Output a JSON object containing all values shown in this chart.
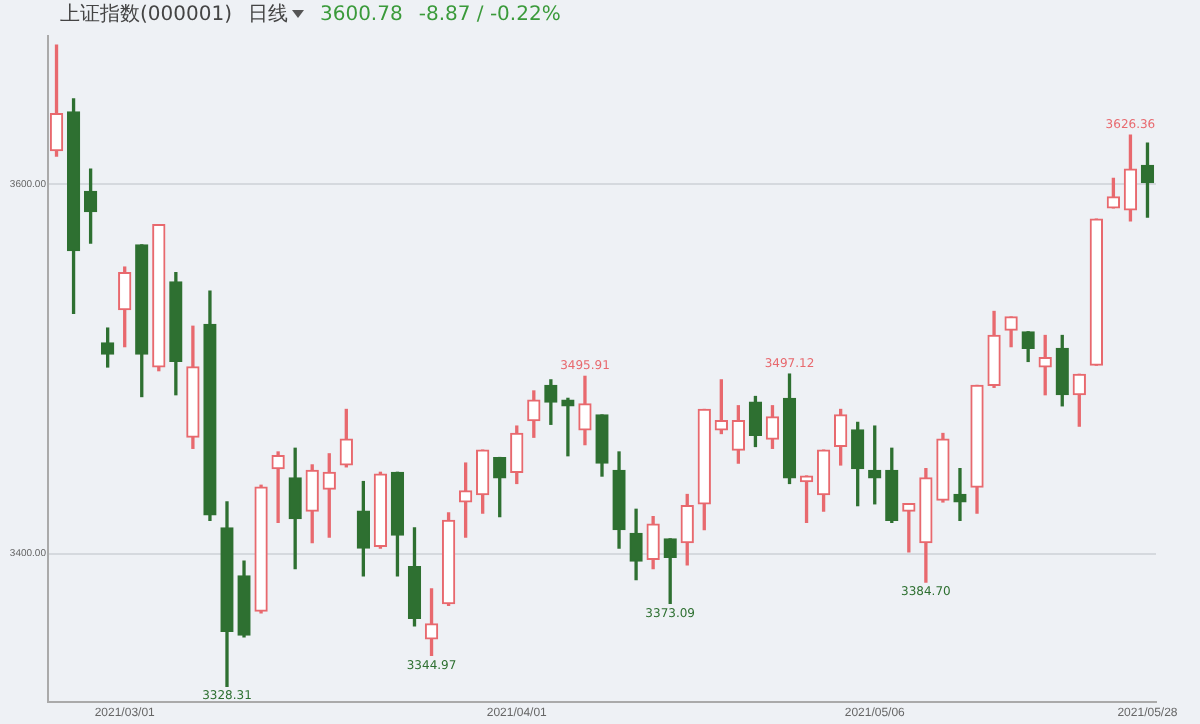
{
  "chart_data": {
    "type": "candlestick",
    "title": "上证指数(000001)",
    "categories": [
      null,
      null,
      null,
      null,
      "2021/03/01",
      null,
      null,
      null,
      null,
      null,
      null,
      null,
      null,
      null,
      null,
      null,
      null,
      null,
      null,
      null,
      null,
      null,
      null,
      null,
      null,
      null,
      null,
      "2021/04/01",
      null,
      null,
      null,
      null,
      null,
      null,
      null,
      null,
      null,
      null,
      null,
      null,
      null,
      null,
      null,
      null,
      null,
      null,
      null,
      null,
      "2021/05/06",
      null,
      null,
      null,
      null,
      null,
      null,
      null,
      null,
      null,
      null,
      null,
      null,
      null,
      null,
      null,
      "2021/05/28"
    ],
    "ohlc": [
      [
        3618,
        3675,
        3615,
        3638
      ],
      [
        3639,
        3646,
        3530,
        3564
      ],
      [
        3596,
        3608,
        3568,
        3585
      ],
      [
        3514,
        3522,
        3501,
        3508
      ],
      [
        3532,
        3555,
        3512,
        3552
      ],
      [
        3567,
        3567,
        3485,
        3508
      ],
      [
        3501,
        3578,
        3499,
        3578
      ],
      [
        3547,
        3552,
        3486,
        3504
      ],
      [
        3463,
        3523,
        3457,
        3501
      ],
      [
        3524,
        3542,
        3418,
        3421
      ],
      [
        3414,
        3428,
        3328.31,
        3358
      ],
      [
        3388,
        3396,
        3355,
        3356
      ],
      [
        3369,
        3437,
        3368,
        3436
      ],
      [
        3446,
        3455,
        3417,
        3453
      ],
      [
        3441,
        3457,
        3392,
        3419
      ],
      [
        3423,
        3448,
        3406,
        3445
      ],
      [
        3435,
        3454,
        3409,
        3444
      ],
      [
        3448,
        3478,
        3447,
        3462
      ],
      [
        3423,
        3439,
        3388,
        3403
      ],
      [
        3404,
        3444,
        3403,
        3443
      ],
      [
        3444,
        3444,
        3388,
        3410
      ],
      [
        3393,
        3414,
        3361,
        3365
      ],
      [
        3354,
        3381,
        3344.97,
        3362
      ],
      [
        3373,
        3422,
        3372,
        3418
      ],
      [
        3428,
        3449,
        3409,
        3434
      ],
      [
        3432,
        3456,
        3422,
        3456
      ],
      [
        3452,
        3452,
        3420,
        3441
      ],
      [
        3444,
        3469,
        3438,
        3465
      ],
      [
        3472,
        3488,
        3463,
        3483
      ],
      [
        3491,
        3494,
        3470,
        3482
      ],
      [
        3483,
        3484,
        3453,
        3480
      ],
      [
        3467,
        3495.91,
        3459,
        3481
      ],
      [
        3475,
        3475,
        3442,
        3449
      ],
      [
        3445,
        3455,
        3403,
        3413
      ],
      [
        3411,
        3424,
        3386,
        3396
      ],
      [
        3397,
        3420,
        3392,
        3416
      ],
      [
        3408,
        3408,
        3373.09,
        3398
      ],
      [
        3406,
        3432,
        3394,
        3426
      ],
      [
        3427,
        3478,
        3413,
        3478
      ],
      [
        3467,
        3494,
        3465,
        3472
      ],
      [
        3456,
        3480,
        3449,
        3472
      ],
      [
        3482,
        3485,
        3458,
        3464
      ],
      [
        3462,
        3480,
        3457,
        3474
      ],
      [
        3484,
        3497.12,
        3438,
        3441
      ],
      [
        3439,
        3442,
        3417,
        3442
      ],
      [
        3432,
        3456,
        3423,
        3456
      ],
      [
        3458,
        3478,
        3448,
        3475
      ],
      [
        3467,
        3471,
        3426,
        3446
      ],
      [
        3445,
        3469,
        3427,
        3441
      ],
      [
        3445,
        3457,
        3417,
        3418
      ],
      [
        3423,
        3427,
        3401,
        3427
      ],
      [
        3406,
        3446,
        3384.7,
        3441
      ],
      [
        3429,
        3465,
        3428,
        3462
      ],
      [
        3432,
        3446,
        3418,
        3428
      ],
      [
        3436,
        3491,
        3422,
        3491
      ],
      [
        3491,
        3531,
        3490,
        3518
      ],
      [
        3521,
        3528,
        3512,
        3528
      ],
      [
        3520,
        3520,
        3504,
        3511
      ],
      [
        3501,
        3518,
        3486,
        3506
      ],
      [
        3511,
        3518,
        3480,
        3486
      ],
      [
        3486,
        3497,
        3469,
        3497
      ],
      [
        3502,
        3581,
        3502,
        3581
      ],
      [
        3587,
        3603,
        3587,
        3593
      ],
      [
        3586,
        3626.36,
        3580,
        3608
      ],
      [
        3610,
        3622,
        3582,
        3600.78
      ]
    ],
    "colors": [
      "#e8696e",
      "#2e7031",
      "#2e7031",
      "#2e7031",
      "#e8696e",
      "#2e7031",
      "#e8696e",
      "#2e7031",
      "#e8696e",
      "#2e7031",
      "#2e7031",
      "#2e7031",
      "#e8696e",
      "#e8696e",
      "#2e7031",
      "#e8696e",
      "#e8696e",
      "#e8696e",
      "#2e7031",
      "#e8696e",
      "#2e7031",
      "#2e7031",
      "#e8696e",
      "#e8696e",
      "#e8696e",
      "#e8696e",
      "#2e7031",
      "#e8696e",
      "#e8696e",
      "#2e7031",
      "#2e7031",
      "#e8696e",
      "#2e7031",
      "#2e7031",
      "#2e7031",
      "#e8696e",
      "#2e7031",
      "#e8696e",
      "#e8696e",
      "#e8696e",
      "#e8696e",
      "#2e7031",
      "#e8696e",
      "#2e7031",
      "#e8696e",
      "#e8696e",
      "#e8696e",
      "#2e7031",
      "#2e7031",
      "#2e7031",
      "#e8696e",
      "#e8696e",
      "#e8696e",
      "#2e7031",
      "#e8696e",
      "#e8696e",
      "#e8696e",
      "#2e7031",
      "#e8696e",
      "#2e7031",
      "#e8696e",
      "#e8696e",
      "#e8696e",
      "#e8696e",
      "#2e7031"
    ],
    "ylim": [
      3320,
      3680
    ],
    "yticks": [
      {
        "value": 3400,
        "label": "3400.00"
      },
      {
        "value": 3600,
        "label": "3600.00"
      }
    ],
    "grid": "y",
    "annotations": [
      "日线",
      "3600.78",
      "-8.87 / -0.22%",
      {
        "text": "3328.31",
        "y": 3328.31
      },
      {
        "text": "3344.97",
        "y": 3344.97
      },
      {
        "text": "3495.91",
        "y": 3495.91
      },
      {
        "text": "3373.09",
        "y": 3373.09
      },
      {
        "text": "3497.12",
        "y": 3497.12
      },
      {
        "text": "3384.70",
        "y": 3384.7
      },
      {
        "text": "3626.36",
        "y": 3626.36
      }
    ]
  }
}
